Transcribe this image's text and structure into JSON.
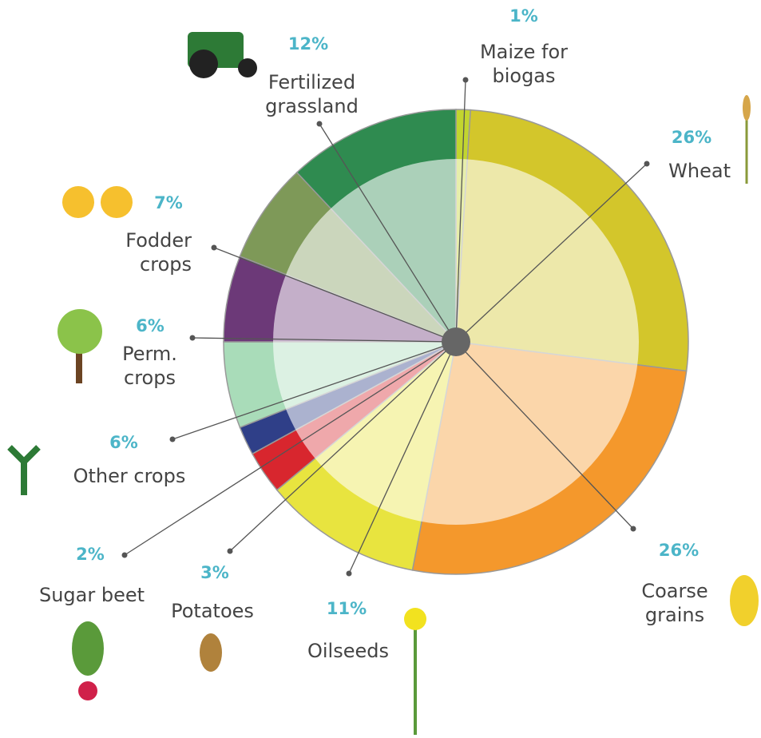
{
  "chart_data": {
    "type": "pie",
    "categories": [
      "Maize for biogas",
      "Wheat",
      "Coarse grains",
      "Oilseeds",
      "Potatoes",
      "Sugar beet",
      "Other crops",
      "Perm. crops",
      "Fodder crops",
      "Fertilized grassland"
    ],
    "values": [
      1,
      26,
      26,
      11,
      3,
      2,
      6,
      6,
      7,
      12
    ],
    "value_labels": [
      "1%",
      "26%",
      "26%",
      "11%",
      "3%",
      "2%",
      "6%",
      "6%",
      "7%",
      "12%"
    ],
    "colors": [
      "#c2d52f",
      "#d3c62b",
      "#f4982c",
      "#e8e43f",
      "#d8262e",
      "#2f3f88",
      "#a9dcb9",
      "#6c3978",
      "#7e9958",
      "#2f8b50"
    ]
  }
}
